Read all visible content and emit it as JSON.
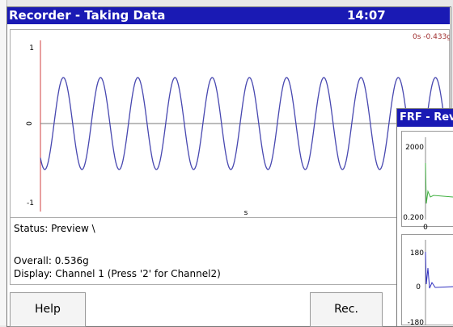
{
  "recorder": {
    "title": "Recorder - Taking Data",
    "time": "14:07",
    "cursor_readout": "0s -0.433g",
    "plot": {
      "y_top": "1",
      "y_mid": "0",
      "y_bottom": "-1",
      "x_unit": "s"
    },
    "status": "Status: Preview  \\",
    "overall": "Overall: 0.536g",
    "display": "Display: Channel 1 (Press '2' for Channel2)",
    "buttons": [
      "Help",
      "Rec."
    ]
  },
  "frf": {
    "title": "FRF - Rev",
    "plot1": {
      "y_top": "2000",
      "y_bottom": "0.200",
      "x_start": "0"
    },
    "plot2": {
      "y_top": "180",
      "y_mid": "0",
      "y_bottom": "-180"
    }
  }
}
